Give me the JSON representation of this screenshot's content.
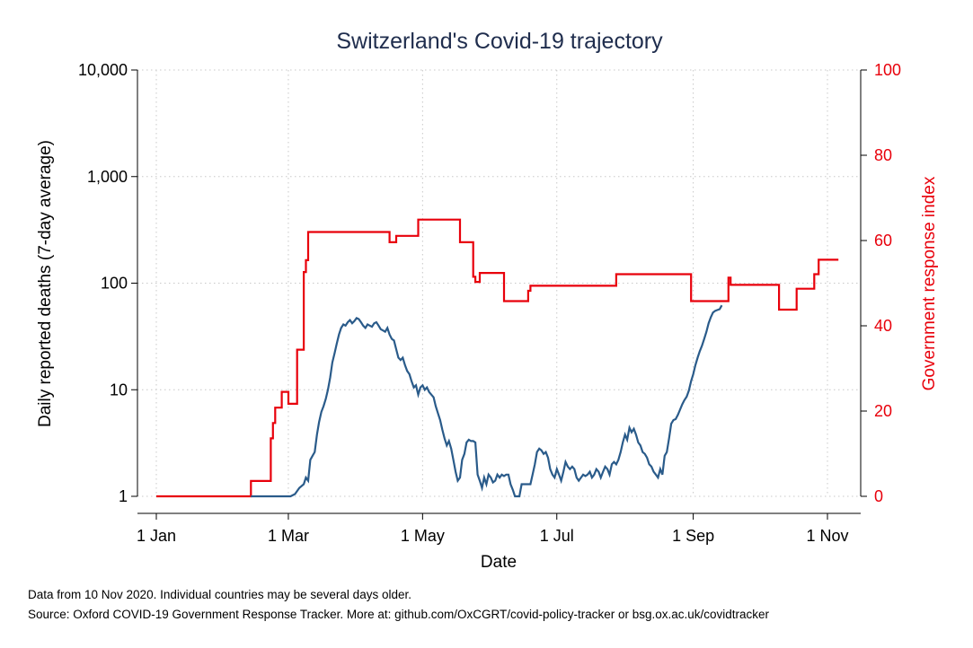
{
  "chart_data": {
    "type": "line",
    "title": "Switzerland's Covid-19 trajectory",
    "xlabel": "Date",
    "ylabel": "Daily reported deaths (7-day average)",
    "y2label": "Government response index",
    "x_ticks": [
      {
        "label": "1 Jan",
        "day": 1
      },
      {
        "label": "1 Mar",
        "day": 61
      },
      {
        "label": "1 May",
        "day": 122
      },
      {
        "label": "1 Jul",
        "day": 183
      },
      {
        "label": "1 Sep",
        "day": 245
      },
      {
        "label": "1 Nov",
        "day": 306
      }
    ],
    "xlim": [
      1,
      315
    ],
    "y_scale": "log",
    "y_ticks": [
      {
        "label": "1",
        "value": 1
      },
      {
        "label": "10",
        "value": 10
      },
      {
        "label": "100",
        "value": 100
      },
      {
        "label": "1,000",
        "value": 1000
      },
      {
        "label": "10,000",
        "value": 10000
      }
    ],
    "ylim": [
      1,
      10000
    ],
    "y2_ticks": [
      {
        "label": "0",
        "value": 0
      },
      {
        "label": "20",
        "value": 20
      },
      {
        "label": "40",
        "value": 40
      },
      {
        "label": "60",
        "value": 60
      },
      {
        "label": "80",
        "value": 80
      },
      {
        "label": "100",
        "value": 100
      }
    ],
    "y2lim": [
      0,
      100
    ],
    "grid": true,
    "series": [
      {
        "name": "",
        "axis": "left",
        "color": "#2a5b8a",
        "points": [
          [
            44,
            1
          ],
          [
            62,
            1
          ],
          [
            64,
            1.05
          ],
          [
            66,
            1.2
          ],
          [
            68,
            1.3
          ],
          [
            69,
            1.5
          ],
          [
            70,
            1.4
          ],
          [
            71,
            2.2
          ],
          [
            72,
            2.4
          ],
          [
            73,
            2.6
          ],
          [
            74,
            3.8
          ],
          [
            75,
            5.0
          ],
          [
            76,
            6.2
          ],
          [
            77,
            7.0
          ],
          [
            78,
            8.2
          ],
          [
            79,
            10
          ],
          [
            80,
            13
          ],
          [
            81,
            18
          ],
          [
            82,
            22
          ],
          [
            83,
            27
          ],
          [
            84,
            33
          ],
          [
            85,
            38
          ],
          [
            86,
            41
          ],
          [
            87,
            40
          ],
          [
            88,
            43
          ],
          [
            89,
            45
          ],
          [
            90,
            42
          ],
          [
            91,
            44
          ],
          [
            92,
            47
          ],
          [
            93,
            46
          ],
          [
            94,
            43
          ],
          [
            95,
            40
          ],
          [
            96,
            38
          ],
          [
            97,
            41
          ],
          [
            98,
            40
          ],
          [
            99,
            39
          ],
          [
            100,
            42
          ],
          [
            101,
            43
          ],
          [
            102,
            40
          ],
          [
            103,
            37
          ],
          [
            104,
            36
          ],
          [
            105,
            35
          ],
          [
            106,
            38
          ],
          [
            107,
            33
          ],
          [
            108,
            30
          ],
          [
            109,
            29
          ],
          [
            110,
            24
          ],
          [
            111,
            20
          ],
          [
            112,
            19
          ],
          [
            113,
            20
          ],
          [
            114,
            17
          ],
          [
            115,
            15
          ],
          [
            116,
            14
          ],
          [
            117,
            12
          ],
          [
            118,
            10.5
          ],
          [
            119,
            11
          ],
          [
            120,
            9
          ],
          [
            121,
            10.5
          ],
          [
            122,
            11
          ],
          [
            123,
            10
          ],
          [
            124,
            10.5
          ],
          [
            125,
            9.5
          ],
          [
            126,
            9
          ],
          [
            127,
            8.5
          ],
          [
            128,
            7
          ],
          [
            129,
            6
          ],
          [
            130,
            5.2
          ],
          [
            131,
            4.2
          ],
          [
            132,
            3.5
          ],
          [
            133,
            3.0
          ],
          [
            134,
            3.3
          ],
          [
            135,
            2.8
          ],
          [
            136,
            2.2
          ],
          [
            137,
            1.7
          ],
          [
            138,
            1.4
          ],
          [
            139,
            1.5
          ],
          [
            140,
            2.2
          ],
          [
            141,
            2.5
          ],
          [
            142,
            3.2
          ],
          [
            143,
            3.4
          ],
          [
            144,
            3.3
          ],
          [
            145,
            3.3
          ],
          [
            146,
            3.2
          ],
          [
            147,
            1.6
          ],
          [
            148,
            1.4
          ],
          [
            149,
            1.2
          ],
          [
            150,
            1.5
          ],
          [
            151,
            1.3
          ],
          [
            152,
            1.6
          ],
          [
            153,
            1.5
          ],
          [
            154,
            1.35
          ],
          [
            155,
            1.4
          ],
          [
            156,
            1.6
          ],
          [
            157,
            1.5
          ],
          [
            158,
            1.6
          ],
          [
            159,
            1.55
          ],
          [
            160,
            1.6
          ],
          [
            161,
            1.6
          ],
          [
            162,
            1.3
          ],
          [
            163,
            1.15
          ],
          [
            164,
            1.0
          ],
          [
            165,
            1.0
          ],
          [
            166,
            1.0
          ],
          [
            167,
            1.3
          ],
          [
            168,
            1.3
          ],
          [
            169,
            1.3
          ],
          [
            170,
            1.3
          ],
          [
            171,
            1.3
          ],
          [
            172,
            1.6
          ],
          [
            173,
            2.0
          ],
          [
            174,
            2.6
          ],
          [
            175,
            2.8
          ],
          [
            176,
            2.7
          ],
          [
            177,
            2.5
          ],
          [
            178,
            2.6
          ],
          [
            179,
            2.3
          ],
          [
            180,
            1.8
          ],
          [
            181,
            1.6
          ],
          [
            182,
            1.5
          ],
          [
            183,
            1.8
          ],
          [
            184,
            1.6
          ],
          [
            185,
            1.4
          ],
          [
            186,
            1.7
          ],
          [
            187,
            2.1
          ],
          [
            188,
            1.9
          ],
          [
            189,
            1.8
          ],
          [
            190,
            1.9
          ],
          [
            191,
            1.8
          ],
          [
            192,
            1.5
          ],
          [
            193,
            1.4
          ],
          [
            194,
            1.5
          ],
          [
            195,
            1.6
          ],
          [
            196,
            1.55
          ],
          [
            197,
            1.6
          ],
          [
            198,
            1.7
          ],
          [
            199,
            1.5
          ],
          [
            200,
            1.6
          ],
          [
            201,
            1.8
          ],
          [
            202,
            1.7
          ],
          [
            203,
            1.5
          ],
          [
            204,
            1.7
          ],
          [
            205,
            1.9
          ],
          [
            206,
            1.8
          ],
          [
            207,
            1.6
          ],
          [
            208,
            2.0
          ],
          [
            209,
            2.1
          ],
          [
            210,
            2.0
          ],
          [
            211,
            2.2
          ],
          [
            212,
            2.6
          ],
          [
            213,
            3.2
          ],
          [
            214,
            3.8
          ],
          [
            215,
            3.4
          ],
          [
            216,
            4.4
          ],
          [
            217,
            4.0
          ],
          [
            218,
            4.3
          ],
          [
            219,
            3.8
          ],
          [
            220,
            3.2
          ],
          [
            221,
            3.0
          ],
          [
            222,
            2.6
          ],
          [
            223,
            2.5
          ],
          [
            224,
            2.3
          ],
          [
            225,
            2.0
          ],
          [
            226,
            1.9
          ],
          [
            227,
            1.7
          ],
          [
            228,
            1.6
          ],
          [
            229,
            1.5
          ],
          [
            230,
            1.8
          ],
          [
            231,
            1.6
          ],
          [
            232,
            2.4
          ],
          [
            233,
            2.6
          ],
          [
            234,
            3.5
          ],
          [
            235,
            4.8
          ],
          [
            236,
            5.2
          ],
          [
            237,
            5.3
          ],
          [
            238,
            5.8
          ],
          [
            239,
            6.5
          ],
          [
            240,
            7.3
          ],
          [
            241,
            8.0
          ],
          [
            242,
            8.6
          ],
          [
            243,
            9.8
          ],
          [
            244,
            12
          ],
          [
            245,
            14
          ],
          [
            246,
            17
          ],
          [
            247,
            20
          ],
          [
            248,
            23
          ],
          [
            249,
            26
          ],
          [
            250,
            30
          ],
          [
            251,
            35
          ],
          [
            252,
            42
          ],
          [
            253,
            48
          ],
          [
            254,
            53
          ],
          [
            255,
            55
          ],
          [
            256,
            56
          ],
          [
            257,
            57
          ],
          [
            258,
            62
          ]
        ]
      },
      {
        "name": "",
        "axis": "right",
        "color": "#e8000b",
        "points": [
          [
            1,
            0
          ],
          [
            44,
            0
          ],
          [
            44,
            3.6
          ],
          [
            53,
            3.6
          ],
          [
            53,
            13.6
          ],
          [
            54,
            13.6
          ],
          [
            54,
            17.2
          ],
          [
            55,
            17.2
          ],
          [
            55,
            20.8
          ],
          [
            58,
            20.8
          ],
          [
            58,
            24.5
          ],
          [
            61,
            24.5
          ],
          [
            61,
            21.7
          ],
          [
            65,
            21.7
          ],
          [
            65,
            34.4
          ],
          [
            68,
            34.4
          ],
          [
            68,
            52.6
          ],
          [
            69,
            52.6
          ],
          [
            69,
            55.4
          ],
          [
            70,
            55.4
          ],
          [
            70,
            62.0
          ],
          [
            107,
            62.0
          ],
          [
            107,
            59.6
          ],
          [
            110,
            59.6
          ],
          [
            110,
            61.1
          ],
          [
            120,
            61.1
          ],
          [
            120,
            64.9
          ],
          [
            139,
            64.9
          ],
          [
            139,
            59.6
          ],
          [
            145,
            59.6
          ],
          [
            145,
            51.5
          ],
          [
            146,
            51.5
          ],
          [
            146,
            50.3
          ],
          [
            148,
            50.3
          ],
          [
            148,
            52.4
          ],
          [
            159,
            52.4
          ],
          [
            159,
            45.8
          ],
          [
            170,
            45.8
          ],
          [
            170,
            48.2
          ],
          [
            171,
            48.2
          ],
          [
            171,
            49.4
          ],
          [
            210,
            49.4
          ],
          [
            210,
            52.1
          ],
          [
            244,
            52.1
          ],
          [
            244,
            45.8
          ],
          [
            261,
            45.8
          ],
          [
            261,
            51.3
          ],
          [
            262,
            51.3
          ],
          [
            262,
            49.6
          ],
          [
            284,
            49.6
          ],
          [
            284,
            43.8
          ],
          [
            292,
            43.8
          ],
          [
            292,
            48.7
          ],
          [
            300,
            48.7
          ],
          [
            300,
            52.1
          ],
          [
            302,
            52.1
          ],
          [
            302,
            55.5
          ],
          [
            311,
            55.5
          ]
        ]
      }
    ]
  },
  "footnotes": {
    "line1": "Data from 10 Nov 2020. Individual countries may be several days older.",
    "line2": "Source: Oxford COVID-19 Government Response Tracker. More at: github.com/OxCGRT/covid-policy-tracker or bsg.ox.ac.uk/covidtracker"
  }
}
